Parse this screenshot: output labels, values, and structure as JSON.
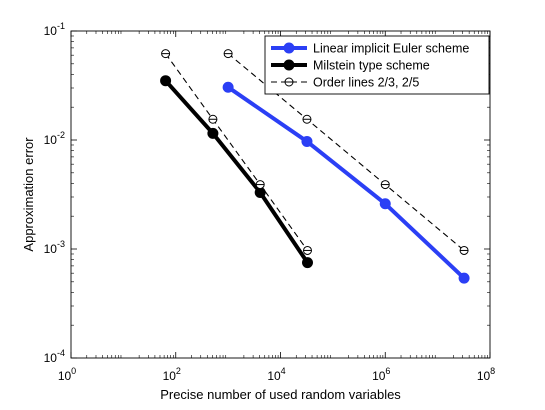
{
  "chart_data": {
    "type": "line",
    "title": "",
    "xlabel": "Precise number of used random variables",
    "ylabel": "Approximation error",
    "x_scale": "log",
    "y_scale": "log",
    "xlim": [
      1,
      100000000
    ],
    "ylim": [
      0.0001,
      0.1
    ],
    "x_ticks": [
      {
        "value": 1,
        "base": "10",
        "exp": "0"
      },
      {
        "value": 100,
        "base": "10",
        "exp": "2"
      },
      {
        "value": 10000,
        "base": "10",
        "exp": "4"
      },
      {
        "value": 1000000,
        "base": "10",
        "exp": "6"
      },
      {
        "value": 100000000,
        "base": "10",
        "exp": "8"
      }
    ],
    "y_ticks": [
      {
        "value": 0.0001,
        "base": "10",
        "exp": "-4"
      },
      {
        "value": 0.001,
        "base": "10",
        "exp": "-3"
      },
      {
        "value": 0.01,
        "base": "10",
        "exp": "-2"
      },
      {
        "value": 0.1,
        "base": "10",
        "exp": "-1"
      }
    ],
    "grid": false,
    "legend_position": "top-right",
    "series": [
      {
        "name": "Linear implicit Euler scheme",
        "color": "#2b3ff5",
        "style": "solid-thick",
        "marker": "filled-circle",
        "x": [
          1000,
          32000,
          1000000,
          32000000
        ],
        "y": [
          0.0305,
          0.0097,
          0.0026,
          0.00054
        ]
      },
      {
        "name": "Milstein type scheme",
        "color": "#000000",
        "style": "solid-thick",
        "marker": "filled-circle",
        "x": [
          64,
          512,
          4096,
          32768
        ],
        "y": [
          0.035,
          0.0115,
          0.0033,
          0.00075
        ]
      },
      {
        "name": "Order lines 2/3, 2/5",
        "color": "#000000",
        "style": "dashed",
        "marker": "open-circle-bar",
        "groups": [
          {
            "x": [
              64,
              512,
              4096,
              32768
            ],
            "y": [
              0.062,
              0.0155,
              0.0039,
              0.00097
            ]
          },
          {
            "x": [
              1000,
              32000,
              1000000,
              32000000
            ],
            "y": [
              0.062,
              0.0155,
              0.0039,
              0.00097
            ]
          }
        ]
      }
    ]
  }
}
